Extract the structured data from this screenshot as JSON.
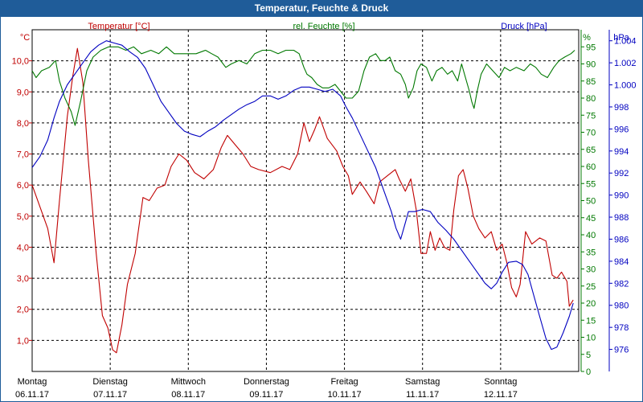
{
  "window": {
    "title": "Temperatur, Feuchte & Druck"
  },
  "colors": {
    "temperature": "#c00000",
    "humidity": "#007800",
    "pressure": "#0000c0",
    "grid": "#000000",
    "titlebar": "#1f5c99"
  },
  "chart_data": {
    "type": "line",
    "title": "Temperatur, Feuchte & Druck",
    "grid": true,
    "x_days": [
      {
        "weekday": "Montag",
        "date": "06.11.17"
      },
      {
        "weekday": "Dienstag",
        "date": "07.11.17"
      },
      {
        "weekday": "Mittwoch",
        "date": "08.11.17"
      },
      {
        "weekday": "Donnerstag",
        "date": "09.11.17"
      },
      {
        "weekday": "Freitag",
        "date": "10.11.17"
      },
      {
        "weekday": "Samstag",
        "date": "11.11.17"
      },
      {
        "weekday": "Sonntag",
        "date": "12.11.17"
      }
    ],
    "x_unit": "days since Montag 06.11.17 00:00",
    "xlim": [
      0,
      7
    ],
    "axes": {
      "temperature": {
        "label": "Temperatur [°C]",
        "unit": "°C",
        "ylim": [
          0,
          11
        ],
        "ticks": [
          "1,0",
          "2,0",
          "3,0",
          "4,0",
          "5,0",
          "6,0",
          "7,0",
          "8,0",
          "9,0",
          "10,0"
        ]
      },
      "humidity": {
        "label": "rel. Feuchte [%]",
        "unit": "%",
        "ylim": [
          0,
          100
        ],
        "ticks": [
          "0",
          "5",
          "10",
          "15",
          "20",
          "25",
          "30",
          "35",
          "40",
          "45",
          "50",
          "55",
          "60",
          "65",
          "70",
          "75",
          "80",
          "85",
          "90",
          "95"
        ]
      },
      "pressure": {
        "label": "Druck [hPa]",
        "unit": "hPa",
        "ylim": [
          974,
          1005
        ],
        "ticks": [
          "976",
          "978",
          "980",
          "982",
          "984",
          "986",
          "988",
          "990",
          "992",
          "994",
          "996",
          "998",
          "1.000",
          "1.002",
          "1.004"
        ]
      }
    },
    "series": [
      {
        "name": "Temperatur",
        "axis": "temperature",
        "points": [
          [
            0,
            6
          ],
          [
            0.1,
            5.3
          ],
          [
            0.2,
            4.6
          ],
          [
            0.28,
            3.5
          ],
          [
            0.35,
            5.5
          ],
          [
            0.45,
            8.2
          ],
          [
            0.52,
            9.5
          ],
          [
            0.58,
            10.4
          ],
          [
            0.65,
            9.3
          ],
          [
            0.72,
            6.8
          ],
          [
            0.82,
            3.8
          ],
          [
            0.9,
            1.8
          ],
          [
            0.97,
            1.4
          ],
          [
            1.03,
            0.7
          ],
          [
            1.08,
            0.6
          ],
          [
            1.15,
            1.5
          ],
          [
            1.22,
            2.8
          ],
          [
            1.32,
            3.8
          ],
          [
            1.42,
            5.6
          ],
          [
            1.5,
            5.5
          ],
          [
            1.6,
            5.9
          ],
          [
            1.7,
            6
          ],
          [
            1.78,
            6.6
          ],
          [
            1.88,
            7
          ],
          [
            1.98,
            6.8
          ],
          [
            2.08,
            6.4
          ],
          [
            2.2,
            6.2
          ],
          [
            2.32,
            6.5
          ],
          [
            2.42,
            7.2
          ],
          [
            2.5,
            7.6
          ],
          [
            2.6,
            7.3
          ],
          [
            2.7,
            7
          ],
          [
            2.8,
            6.6
          ],
          [
            2.9,
            6.5
          ],
          [
            3.05,
            6.4
          ],
          [
            3.2,
            6.6
          ],
          [
            3.3,
            6.5
          ],
          [
            3.4,
            7
          ],
          [
            3.48,
            8
          ],
          [
            3.55,
            7.4
          ],
          [
            3.62,
            7.8
          ],
          [
            3.68,
            8.2
          ],
          [
            3.78,
            7.5
          ],
          [
            3.9,
            7.1
          ],
          [
            3.98,
            6.6
          ],
          [
            4.05,
            6.3
          ],
          [
            4.1,
            5.7
          ],
          [
            4.2,
            6.1
          ],
          [
            4.28,
            5.8
          ],
          [
            4.38,
            5.4
          ],
          [
            4.45,
            6.1
          ],
          [
            4.55,
            6.3
          ],
          [
            4.65,
            6.5
          ],
          [
            4.7,
            6.2
          ],
          [
            4.78,
            5.8
          ],
          [
            4.85,
            6.2
          ],
          [
            4.92,
            5.2
          ],
          [
            4.98,
            3.8
          ],
          [
            5.05,
            3.8
          ],
          [
            5.1,
            4.5
          ],
          [
            5.16,
            3.9
          ],
          [
            5.22,
            4.3
          ],
          [
            5.28,
            4
          ],
          [
            5.35,
            3.9
          ],
          [
            5.4,
            5.2
          ],
          [
            5.46,
            6.3
          ],
          [
            5.52,
            6.5
          ],
          [
            5.58,
            5.9
          ],
          [
            5.65,
            5
          ],
          [
            5.72,
            4.6
          ],
          [
            5.8,
            4.3
          ],
          [
            5.88,
            4.5
          ],
          [
            5.95,
            3.9
          ],
          [
            6.02,
            4.1
          ],
          [
            6.08,
            3.5
          ],
          [
            6.14,
            2.7
          ],
          [
            6.2,
            2.4
          ],
          [
            6.25,
            2.8
          ],
          [
            6.32,
            4.5
          ],
          [
            6.4,
            4.1
          ],
          [
            6.5,
            4.3
          ],
          [
            6.58,
            4.2
          ],
          [
            6.66,
            3.1
          ],
          [
            6.72,
            3
          ],
          [
            6.78,
            3.2
          ],
          [
            6.85,
            2.9
          ],
          [
            6.88,
            2.1
          ],
          [
            6.93,
            2.3
          ]
        ]
      },
      {
        "name": "rel. Feuchte",
        "axis": "humidity",
        "points": [
          [
            0,
            88
          ],
          [
            0.05,
            86
          ],
          [
            0.12,
            88
          ],
          [
            0.22,
            89
          ],
          [
            0.3,
            91
          ],
          [
            0.35,
            85
          ],
          [
            0.42,
            80
          ],
          [
            0.5,
            76
          ],
          [
            0.55,
            72
          ],
          [
            0.62,
            79
          ],
          [
            0.7,
            88
          ],
          [
            0.78,
            92
          ],
          [
            0.88,
            94
          ],
          [
            0.98,
            95
          ],
          [
            1.1,
            95
          ],
          [
            1.2,
            94
          ],
          [
            1.3,
            95
          ],
          [
            1.4,
            93
          ],
          [
            1.52,
            94
          ],
          [
            1.62,
            93
          ],
          [
            1.72,
            95
          ],
          [
            1.82,
            93
          ],
          [
            1.95,
            93
          ],
          [
            2.1,
            93
          ],
          [
            2.22,
            94
          ],
          [
            2.3,
            93
          ],
          [
            2.38,
            92
          ],
          [
            2.48,
            89
          ],
          [
            2.55,
            90
          ],
          [
            2.65,
            91
          ],
          [
            2.75,
            90
          ],
          [
            2.85,
            93
          ],
          [
            2.95,
            94
          ],
          [
            3.05,
            94
          ],
          [
            3.15,
            93
          ],
          [
            3.25,
            94
          ],
          [
            3.35,
            94
          ],
          [
            3.42,
            93
          ],
          [
            3.48,
            89
          ],
          [
            3.52,
            87
          ],
          [
            3.58,
            86
          ],
          [
            3.65,
            84
          ],
          [
            3.72,
            83
          ],
          [
            3.8,
            83
          ],
          [
            3.88,
            84
          ],
          [
            3.95,
            82
          ],
          [
            4.02,
            80
          ],
          [
            4.1,
            80
          ],
          [
            4.18,
            82
          ],
          [
            4.25,
            88
          ],
          [
            4.32,
            92
          ],
          [
            4.4,
            93
          ],
          [
            4.46,
            91
          ],
          [
            4.52,
            91
          ],
          [
            4.58,
            92
          ],
          [
            4.65,
            88
          ],
          [
            4.72,
            87
          ],
          [
            4.78,
            84
          ],
          [
            4.82,
            80
          ],
          [
            4.88,
            83
          ],
          [
            4.93,
            88
          ],
          [
            4.98,
            90
          ],
          [
            5.05,
            89
          ],
          [
            5.12,
            85
          ],
          [
            5.18,
            88
          ],
          [
            5.25,
            89
          ],
          [
            5.32,
            87
          ],
          [
            5.38,
            88
          ],
          [
            5.45,
            85
          ],
          [
            5.5,
            90
          ],
          [
            5.55,
            86
          ],
          [
            5.6,
            82
          ],
          [
            5.63,
            79
          ],
          [
            5.66,
            77
          ],
          [
            5.7,
            82
          ],
          [
            5.75,
            87
          ],
          [
            5.82,
            90
          ],
          [
            5.9,
            88
          ],
          [
            5.98,
            86
          ],
          [
            6.05,
            89
          ],
          [
            6.12,
            88
          ],
          [
            6.2,
            89
          ],
          [
            6.3,
            88
          ],
          [
            6.38,
            90
          ],
          [
            6.45,
            89
          ],
          [
            6.52,
            87
          ],
          [
            6.6,
            86
          ],
          [
            6.68,
            89
          ],
          [
            6.75,
            91
          ],
          [
            6.82,
            92
          ],
          [
            6.9,
            93
          ],
          [
            6.95,
            94
          ]
        ]
      },
      {
        "name": "Druck",
        "axis": "pressure",
        "points": [
          [
            0,
            992.5
          ],
          [
            0.1,
            993.5
          ],
          [
            0.2,
            995
          ],
          [
            0.28,
            997
          ],
          [
            0.35,
            998.5
          ],
          [
            0.45,
            1000
          ],
          [
            0.55,
            1001
          ],
          [
            0.65,
            1002
          ],
          [
            0.75,
            1003
          ],
          [
            0.85,
            1003.6
          ],
          [
            0.95,
            1004
          ],
          [
            1.05,
            1003.8
          ],
          [
            1.15,
            1003.6
          ],
          [
            1.25,
            1003
          ],
          [
            1.35,
            1002.5
          ],
          [
            1.45,
            1001.5
          ],
          [
            1.55,
            1000
          ],
          [
            1.65,
            998.5
          ],
          [
            1.75,
            997.5
          ],
          [
            1.85,
            996.5
          ],
          [
            1.95,
            995.8
          ],
          [
            2.05,
            995.5
          ],
          [
            2.15,
            995.3
          ],
          [
            2.25,
            995.8
          ],
          [
            2.35,
            996.2
          ],
          [
            2.45,
            996.8
          ],
          [
            2.55,
            997.3
          ],
          [
            2.65,
            997.8
          ],
          [
            2.75,
            998.2
          ],
          [
            2.85,
            998.5
          ],
          [
            2.95,
            999
          ],
          [
            3.05,
            999
          ],
          [
            3.15,
            998.7
          ],
          [
            3.25,
            999
          ],
          [
            3.35,
            999.5
          ],
          [
            3.45,
            999.8
          ],
          [
            3.55,
            999.8
          ],
          [
            3.65,
            999.6
          ],
          [
            3.75,
            999.4
          ],
          [
            3.85,
            999.6
          ],
          [
            3.95,
            999
          ],
          [
            4.02,
            998
          ],
          [
            4.1,
            997
          ],
          [
            4.2,
            995.5
          ],
          [
            4.3,
            994
          ],
          [
            4.4,
            992.5
          ],
          [
            4.5,
            990.5
          ],
          [
            4.6,
            988.5
          ],
          [
            4.66,
            987
          ],
          [
            4.72,
            986
          ],
          [
            4.76,
            987
          ],
          [
            4.82,
            988.5
          ],
          [
            4.9,
            988.5
          ],
          [
            5,
            988.7
          ],
          [
            5.1,
            988.5
          ],
          [
            5.2,
            987.5
          ],
          [
            5.3,
            986.8
          ],
          [
            5.4,
            986
          ],
          [
            5.5,
            985
          ],
          [
            5.6,
            984
          ],
          [
            5.7,
            983
          ],
          [
            5.8,
            982
          ],
          [
            5.88,
            981.5
          ],
          [
            5.95,
            982
          ],
          [
            6.02,
            983
          ],
          [
            6.1,
            983.9
          ],
          [
            6.2,
            984
          ],
          [
            6.28,
            983.7
          ],
          [
            6.35,
            982.8
          ],
          [
            6.42,
            981
          ],
          [
            6.5,
            979
          ],
          [
            6.58,
            977
          ],
          [
            6.65,
            976
          ],
          [
            6.72,
            976.2
          ],
          [
            6.8,
            977.5
          ],
          [
            6.88,
            979
          ],
          [
            6.93,
            980.2
          ]
        ]
      }
    ]
  }
}
